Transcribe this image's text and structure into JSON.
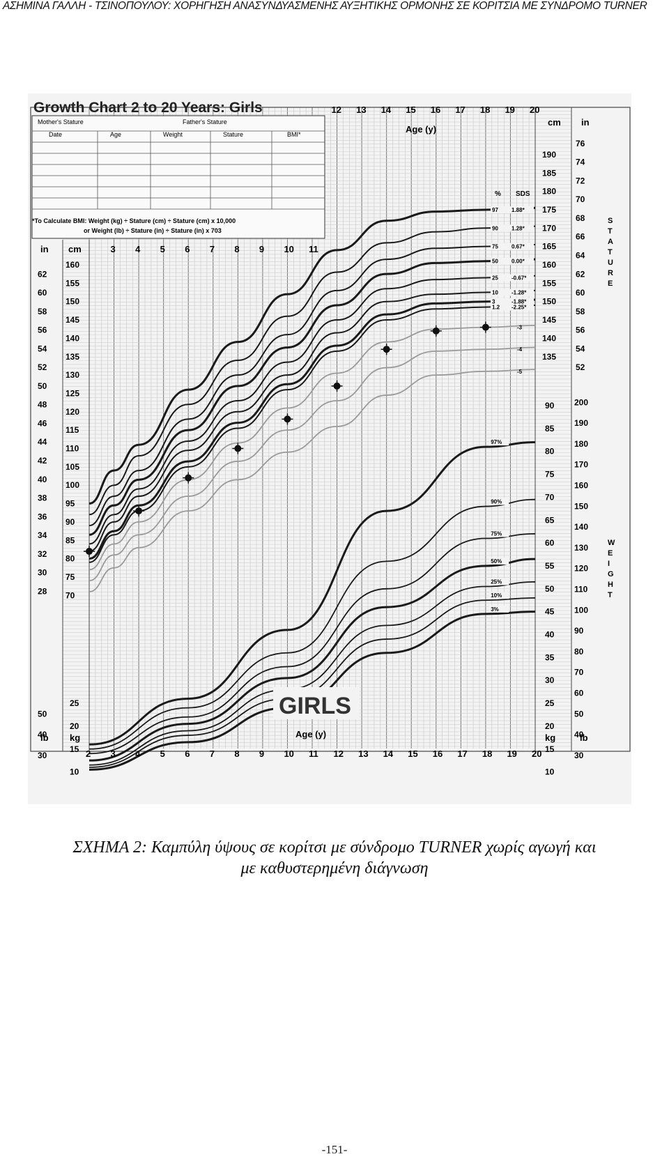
{
  "running_head": "ΑΣΗΜΙΝΑ ΓΑΛΛΗ - ΤΣΙΝΟΠΟΥΛΟΥ: ΧΟΡΗΓΗΣΗ ΑΝΑΣΥΝΔΥΑΣΜΕΝΗΣ ΑΥΞΗΤΙΚΗΣ ΟΡΜΟΝΗΣ ΣΕ ΚΟΡΙΤΣΙΑ ΜΕ ΣΥΝΔΡΟΜΟ TURNER",
  "caption": {
    "line1": "ΣΧΗΜΑ 2: Καμπύλη ύψους σε κορίτσι με σύνδρομο TURNER χωρίς αγωγή και",
    "line2": "με καθυστερημένη διάγνωση"
  },
  "page_number": "-151-",
  "figure": {
    "title": "Growth Chart 2 to 20 Years: Girls",
    "big_label": "GIRLS",
    "age_label": "Age (y)",
    "form": {
      "mothers_stature": "Mother's Stature",
      "fathers_stature": "Father's Stature",
      "columns": [
        "Date",
        "Age",
        "Weight",
        "Stature",
        "BMI*"
      ],
      "bmi_note_1": "*To Calculate BMI: Weight (kg) ÷ Stature (cm) ÷ Stature (cm) x 10,000",
      "bmi_note_2": "or Weight (lb) ÷ Stature (in) ÷ Stature (in) x 703"
    },
    "unit_labels": {
      "in": "in",
      "cm": "cm",
      "lb": "lb",
      "kg": "kg"
    },
    "side_labels": {
      "stature": "STATURE",
      "weight": "WEIGHT"
    },
    "pct_header": "%",
    "sds_header": "SDS",
    "stature_legend": [
      {
        "pct": "97",
        "sds": "1.88*"
      },
      {
        "pct": "90",
        "sds": "1.28*"
      },
      {
        "pct": "75",
        "sds": "0.67*"
      },
      {
        "pct": "50",
        "sds": "0.00*"
      },
      {
        "pct": "25",
        "sds": "-0.67*"
      },
      {
        "pct": "10",
        "sds": "-1.28*"
      },
      {
        "pct": "3",
        "sds": "-1.88*"
      },
      {
        "pct": "1.2",
        "sds": "-2.25*"
      }
    ],
    "extra_sds": [
      "-3",
      "-4",
      "-5"
    ],
    "weight_percentiles": [
      "97%",
      "90%",
      "75%",
      "50%",
      "25%",
      "10%",
      "3%"
    ],
    "ticks": {
      "age_bottom": [
        "2",
        "3",
        "4",
        "5",
        "6",
        "7",
        "8",
        "9",
        "10",
        "11",
        "12",
        "13",
        "14",
        "15",
        "16",
        "17",
        "18",
        "19",
        "20"
      ],
      "age_top": [
        "12",
        "13",
        "14",
        "15",
        "16",
        "17",
        "18",
        "19",
        "20"
      ],
      "age_mid": [
        "3",
        "4",
        "5",
        "6",
        "7",
        "8",
        "9",
        "10",
        "11"
      ],
      "stature_cm_left": [
        "160",
        "155",
        "150",
        "145",
        "140",
        "135",
        "130",
        "125",
        "120",
        "115",
        "110",
        "105",
        "100",
        "95",
        "90",
        "85",
        "80",
        "75",
        "70"
      ],
      "stature_in_left": [
        "62",
        "60",
        "58",
        "56",
        "54",
        "52",
        "50",
        "48",
        "46",
        "44",
        "42",
        "40",
        "38",
        "36",
        "34",
        "32",
        "30",
        "28"
      ],
      "stature_cm_right": [
        "190",
        "185",
        "180",
        "175",
        "170",
        "165",
        "160",
        "155",
        "150",
        "145",
        "140",
        "135"
      ],
      "stature_in_right": [
        "76",
        "74",
        "72",
        "70",
        "68",
        "66",
        "64",
        "62",
        "60",
        "58",
        "56",
        "54",
        "52"
      ],
      "weight_kg_right": [
        "90",
        "85",
        "80",
        "75",
        "70",
        "65",
        "60",
        "55",
        "50",
        "45",
        "40",
        "35",
        "30",
        "25",
        "20",
        "15",
        "10"
      ],
      "weight_lb_right": [
        "200",
        "190",
        "180",
        "170",
        "160",
        "150",
        "140",
        "130",
        "120",
        "110",
        "100",
        "90",
        "80",
        "70",
        "60",
        "50",
        "40",
        "30"
      ],
      "weight_kg_left": [
        "25",
        "20",
        "15",
        "10"
      ],
      "weight_lb_left": [
        "50",
        "40",
        "30"
      ]
    }
  },
  "chart_data": {
    "type": "line",
    "title": "Growth Chart 2 to 20 Years: Girls",
    "xlabel": "Age (y)",
    "ylabel": "Stature (cm)",
    "xlim": [
      2,
      20
    ],
    "ylim": [
      70,
      190
    ],
    "x": [
      2,
      3,
      4,
      6,
      8,
      10,
      12,
      14,
      16,
      18,
      20
    ],
    "series": [
      {
        "name": "97",
        "values": [
          95,
          104,
          111,
          126,
          139,
          152,
          164,
          172,
          174.5,
          175,
          175.5
        ]
      },
      {
        "name": "90",
        "values": [
          92,
          100,
          108,
          122,
          134,
          146,
          158,
          166,
          169,
          170,
          170.5
        ]
      },
      {
        "name": "75",
        "values": [
          89,
          97,
          104,
          118,
          130,
          141,
          153,
          161.5,
          164.5,
          165,
          165.5
        ]
      },
      {
        "name": "50",
        "values": [
          86.5,
          94.5,
          101.5,
          115,
          127,
          137.5,
          149,
          157.5,
          160.5,
          161,
          161.5
        ]
      },
      {
        "name": "25",
        "values": [
          84,
          92,
          99,
          112,
          123,
          133.5,
          145,
          153.5,
          156,
          156.5,
          157
        ]
      },
      {
        "name": "10",
        "values": [
          82,
          90,
          97,
          109.5,
          120,
          130,
          141.5,
          150,
          152,
          152.5,
          153
        ]
      },
      {
        "name": "3",
        "values": [
          80,
          87.5,
          94.5,
          106.5,
          117,
          127.5,
          138,
          146.5,
          149.5,
          150,
          150.5
        ]
      },
      {
        "name": "1.2",
        "values": [
          79,
          86.5,
          93,
          105,
          115.5,
          126,
          136.5,
          145,
          148,
          148.5,
          149
        ]
      },
      {
        "name": "-3",
        "values": [
          77,
          84,
          90,
          101.5,
          111.5,
          121,
          130.5,
          139,
          142.5,
          143,
          143.5
        ]
      },
      {
        "name": "-4",
        "values": [
          74,
          81,
          86.5,
          97,
          106.5,
          115,
          123,
          132,
          136.5,
          137,
          137.5
        ]
      },
      {
        "name": "-5",
        "values": [
          71,
          77.5,
          83,
          93,
          101.5,
          109,
          116,
          124.5,
          130,
          131,
          131.5
        ]
      }
    ],
    "patient_points": [
      {
        "x": 2,
        "y": 82
      },
      {
        "x": 4,
        "y": 93
      },
      {
        "x": 6,
        "y": 102
      },
      {
        "x": 8,
        "y": 110
      },
      {
        "x": 10,
        "y": 118
      },
      {
        "x": 12,
        "y": 127
      },
      {
        "x": 14,
        "y": 137
      },
      {
        "x": 16,
        "y": 142
      },
      {
        "x": 18,
        "y": 143
      }
    ],
    "weight_series": [
      {
        "name": "97%",
        "x": [
          2,
          6,
          10,
          14,
          18,
          20
        ],
        "values": [
          16,
          26,
          41,
          67,
          81,
          82
        ]
      },
      {
        "name": "90%",
        "x": [
          2,
          6,
          10,
          14,
          18,
          20
        ],
        "values": [
          15,
          24,
          36,
          56,
          68,
          69.5
        ]
      },
      {
        "name": "75%",
        "x": [
          2,
          6,
          10,
          14,
          18,
          20
        ],
        "values": [
          14,
          22,
          33,
          50,
          61,
          62
        ]
      },
      {
        "name": "50%",
        "x": [
          2,
          6,
          10,
          14,
          18,
          20
        ],
        "values": [
          12.5,
          20.5,
          30.5,
          46,
          55,
          56.5
        ]
      },
      {
        "name": "25%",
        "x": [
          2,
          6,
          10,
          14,
          18,
          20
        ],
        "values": [
          11.5,
          19,
          28,
          42,
          50.5,
          51.5
        ]
      },
      {
        "name": "10%",
        "x": [
          2,
          6,
          10,
          14,
          18,
          20
        ],
        "values": [
          11,
          18,
          26,
          39,
          47.5,
          48
        ]
      },
      {
        "name": "3%",
        "x": [
          2,
          6,
          10,
          14,
          18,
          20
        ],
        "values": [
          10.5,
          16.5,
          24,
          36,
          44.5,
          45
        ]
      }
    ]
  }
}
